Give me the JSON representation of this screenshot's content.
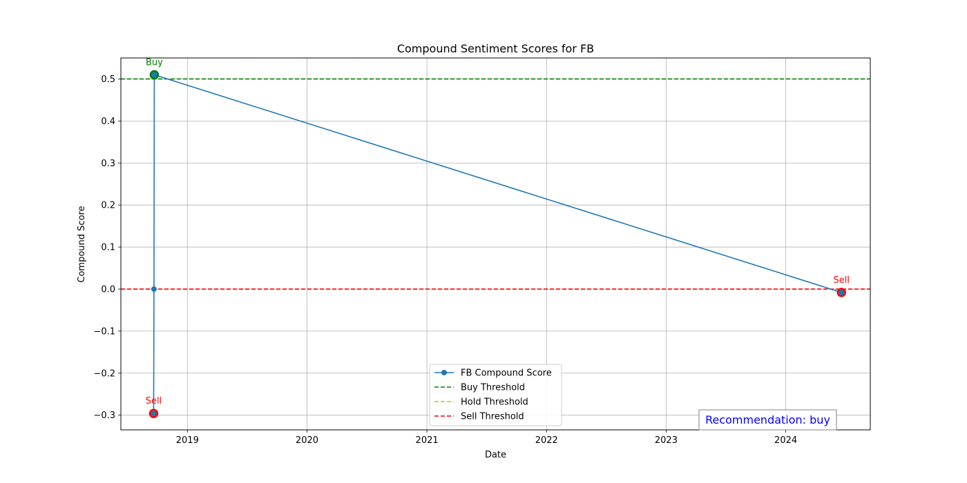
{
  "chart_data": {
    "type": "line",
    "title": "Compound Sentiment Scores for FB",
    "xlabel": "Date",
    "ylabel": "Compound Score",
    "x_type": "date",
    "xlim": [
      "2018-06-12",
      "2024-09-15"
    ],
    "ylim": [
      -0.335,
      0.55
    ],
    "grid": true,
    "x_ticks": [
      {
        "value": "2019-01-01",
        "label": "2019"
      },
      {
        "value": "2020-01-01",
        "label": "2020"
      },
      {
        "value": "2021-01-01",
        "label": "2021"
      },
      {
        "value": "2022-01-01",
        "label": "2022"
      },
      {
        "value": "2023-01-01",
        "label": "2023"
      },
      {
        "value": "2024-01-01",
        "label": "2024"
      }
    ],
    "y_ticks": [
      {
        "value": 0.5,
        "label": "0.5"
      },
      {
        "value": 0.4,
        "label": "0.4"
      },
      {
        "value": 0.3,
        "label": "0.3"
      },
      {
        "value": 0.2,
        "label": "0.2"
      },
      {
        "value": 0.1,
        "label": "0.1"
      },
      {
        "value": 0.0,
        "label": "0.0"
      },
      {
        "value": -0.1,
        "label": "−0.1"
      },
      {
        "value": -0.2,
        "label": "−0.2"
      },
      {
        "value": -0.3,
        "label": "−0.3"
      }
    ],
    "series": [
      {
        "name": "FB Compound Score",
        "color": "#1f77b4",
        "marker": "circle",
        "points": [
          {
            "x": "2018-09-20",
            "y": -0.296
          },
          {
            "x": "2018-09-20",
            "y": -0.296
          },
          {
            "x": "2018-09-21",
            "y": 0.0
          },
          {
            "x": "2018-09-22",
            "y": 0.51
          },
          {
            "x": "2024-06-19",
            "y": -0.008
          }
        ]
      }
    ],
    "thresholds": [
      {
        "name": "Buy Threshold",
        "y": 0.5,
        "color": "#008000",
        "style": "dashed",
        "visible": true
      },
      {
        "name": "Hold Threshold",
        "y": 0.0,
        "color": "#bfbf00",
        "style": "dashed",
        "visible": false
      },
      {
        "name": "Sell Threshold",
        "y": 0.0,
        "color": "#ff0000",
        "style": "dashed",
        "visible": true
      }
    ],
    "signals": [
      {
        "label": "Sell",
        "x": "2018-09-20",
        "y": -0.296,
        "color": "#ff0000"
      },
      {
        "label": "Buy",
        "x": "2018-09-22",
        "y": 0.51,
        "color": "#008000"
      },
      {
        "label": "Sell",
        "x": "2024-06-19",
        "y": -0.008,
        "color": "#ff0000"
      }
    ],
    "legend": {
      "placement": "lower-center",
      "entries": [
        "FB Compound Score",
        "Buy Threshold",
        "Hold Threshold",
        "Sell Threshold"
      ]
    },
    "recommendation": {
      "text": "Recommendation: buy",
      "color": "#0000ff",
      "placement": "lower-right"
    }
  }
}
